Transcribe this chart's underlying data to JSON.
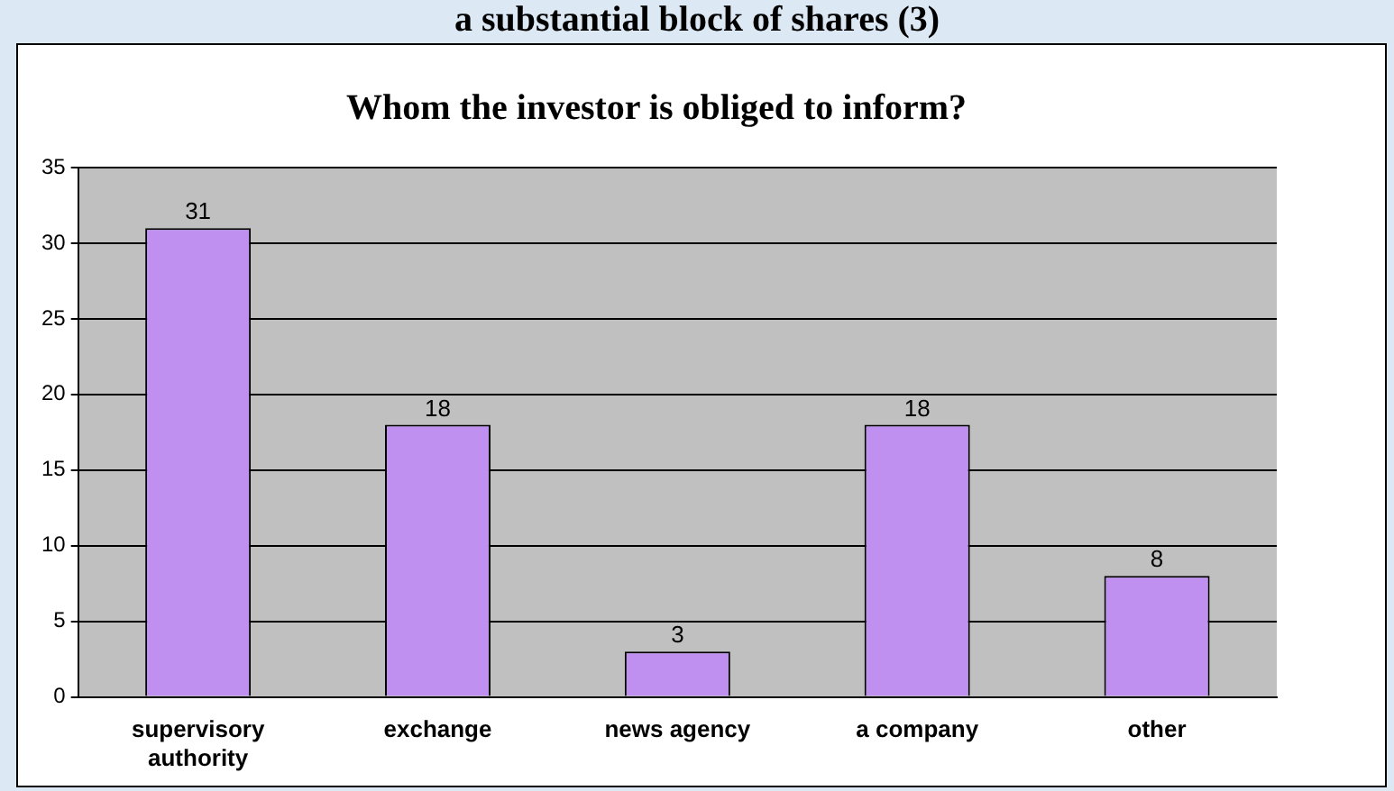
{
  "chart_data": {
    "type": "bar",
    "title": "Whom the investor is obliged to inform?",
    "annotations": [
      "a substantial block of shares (3)"
    ],
    "categories": [
      "supervisory authority",
      "exchange",
      "news agency",
      "a company",
      "other"
    ],
    "values": [
      31,
      18,
      3,
      18,
      8
    ],
    "color": "#c090f0",
    "ylim": [
      0,
      35
    ],
    "yticks": [
      0,
      5,
      10,
      15,
      20,
      25,
      30,
      35
    ],
    "grid": "y",
    "legend": false,
    "data_labels": true
  }
}
